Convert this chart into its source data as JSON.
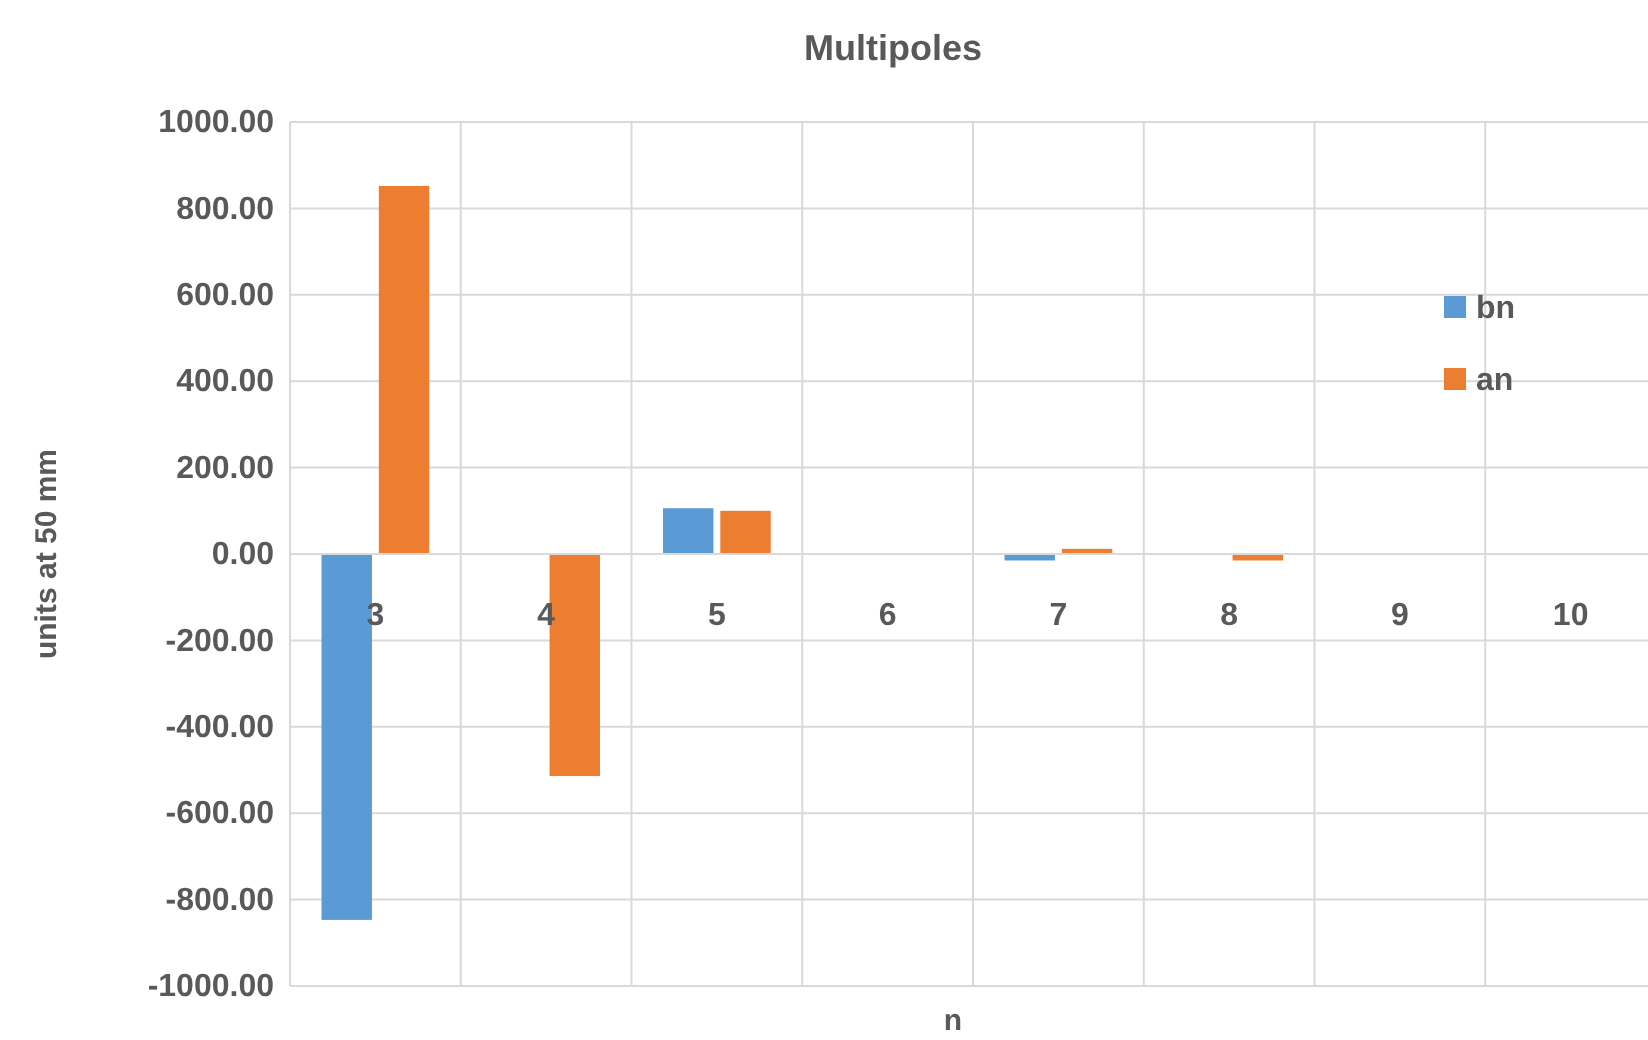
{
  "chart_data": {
    "type": "bar",
    "title": "Multipoles",
    "xlabel": "n",
    "ylabel": "units at 50 mm",
    "categories": [
      "3",
      "4",
      "5",
      "6",
      "7",
      "8",
      "9",
      "10"
    ],
    "series": [
      {
        "name": "bn",
        "color": "#5b9bd5",
        "values": [
          -847,
          0,
          106,
          0,
          -15,
          0,
          0,
          0
        ]
      },
      {
        "name": "an",
        "color": "#ed7d31",
        "values": [
          852,
          -514,
          100,
          0,
          12,
          -15,
          0,
          0
        ]
      }
    ],
    "ylim": [
      -1000,
      1000
    ],
    "yticks": [
      {
        "value": -1000,
        "label": "-1000.00"
      },
      {
        "value": -800,
        "label": "-800.00"
      },
      {
        "value": -600,
        "label": "-600.00"
      },
      {
        "value": -400,
        "label": "-400.00"
      },
      {
        "value": -200,
        "label": "-200.00"
      },
      {
        "value": 0,
        "label": "0.00"
      },
      {
        "value": 200,
        "label": "200.00"
      },
      {
        "value": 400,
        "label": "400.00"
      },
      {
        "value": 600,
        "label": "600.00"
      },
      {
        "value": 800,
        "label": "800.00"
      },
      {
        "value": 1000,
        "label": "1000.00"
      }
    ],
    "grid": true,
    "legend": "right"
  }
}
